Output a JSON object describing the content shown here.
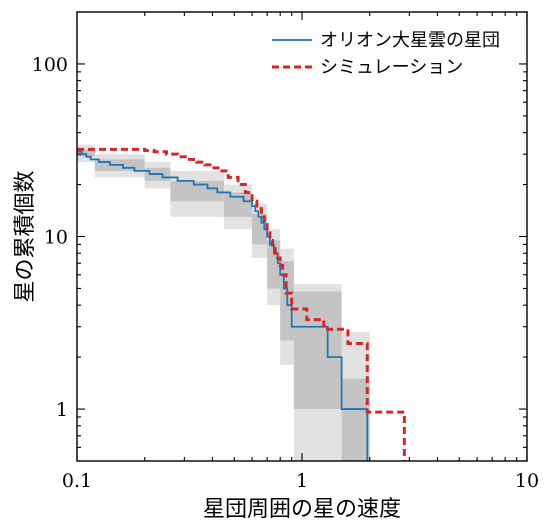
{
  "chart_data": {
    "type": "line",
    "title": "",
    "xlabel": "星団周囲の星の速度",
    "ylabel": "星の累積個数",
    "xscale": "log",
    "yscale": "log",
    "xlim": [
      0.1,
      10
    ],
    "ylim": [
      0.5,
      200
    ],
    "grid": false,
    "legend_position": "top-right",
    "x_ticks": [
      {
        "value": 0.1,
        "label": "0.1"
      },
      {
        "value": 1,
        "label": "1"
      },
      {
        "value": 10,
        "label": "10"
      }
    ],
    "y_ticks": [
      {
        "value": 1,
        "label": "1"
      },
      {
        "value": 10,
        "label": "10"
      },
      {
        "value": 100,
        "label": "100"
      }
    ],
    "bands": [
      {
        "level": "outer",
        "color": "#e2e2e2",
        "boxes": [
          {
            "x0": 0.1,
            "x1": 0.12,
            "y0": 27,
            "y1": 34
          },
          {
            "x0": 0.12,
            "x1": 0.2,
            "y0": 22,
            "y1": 30
          },
          {
            "x0": 0.2,
            "x1": 0.26,
            "y0": 19,
            "y1": 27
          },
          {
            "x0": 0.26,
            "x1": 0.45,
            "y0": 13,
            "y1": 24
          },
          {
            "x0": 0.45,
            "x1": 0.6,
            "y0": 11,
            "y1": 20
          },
          {
            "x0": 0.6,
            "x1": 0.7,
            "y0": 7.5,
            "y1": 15.5
          },
          {
            "x0": 0.7,
            "x1": 0.8,
            "y0": 4,
            "y1": 11
          },
          {
            "x0": 0.8,
            "x1": 0.92,
            "y0": 1.8,
            "y1": 8.5
          },
          {
            "x0": 0.92,
            "x1": 1.5,
            "y0": 0.5,
            "y1": 5.3
          },
          {
            "x0": 1.5,
            "x1": 2.0,
            "y0": 0.5,
            "y1": 2.8
          }
        ]
      },
      {
        "level": "inner",
        "color": "#c4c4c4",
        "boxes": [
          {
            "x0": 0.1,
            "x1": 0.12,
            "y0": 29,
            "y1": 32
          },
          {
            "x0": 0.12,
            "x1": 0.2,
            "y0": 24,
            "y1": 28
          },
          {
            "x0": 0.2,
            "x1": 0.26,
            "y0": 21,
            "y1": 25
          },
          {
            "x0": 0.26,
            "x1": 0.45,
            "y0": 16,
            "y1": 21
          },
          {
            "x0": 0.45,
            "x1": 0.6,
            "y0": 13,
            "y1": 18
          },
          {
            "x0": 0.6,
            "x1": 0.7,
            "y0": 9,
            "y1": 13.5
          },
          {
            "x0": 0.7,
            "x1": 0.8,
            "y0": 5,
            "y1": 9.5
          },
          {
            "x0": 0.8,
            "x1": 0.92,
            "y0": 2.5,
            "y1": 7.2
          },
          {
            "x0": 0.92,
            "x1": 1.5,
            "y0": 1.0,
            "y1": 4.8
          },
          {
            "x0": 1.5,
            "x1": 2.0,
            "y0": 0.5,
            "y1": 1.5
          }
        ]
      }
    ],
    "series": [
      {
        "name": "オリオン大星雲の星団",
        "color": "#1f77b4",
        "style": "solid",
        "x": [
          0.1,
          0.105,
          0.11,
          0.115,
          0.125,
          0.14,
          0.16,
          0.18,
          0.21,
          0.24,
          0.28,
          0.33,
          0.38,
          0.42,
          0.48,
          0.55,
          0.6,
          0.62,
          0.64,
          0.66,
          0.68,
          0.7,
          0.72,
          0.75,
          0.78,
          0.8,
          0.83,
          0.86,
          0.9,
          1.3,
          1.5,
          1.95
        ],
        "y": [
          31,
          30,
          29,
          28,
          27,
          26,
          25,
          24,
          23,
          22,
          21,
          20,
          19,
          18,
          17,
          16,
          15,
          14,
          13,
          12,
          11,
          10,
          9,
          8,
          7,
          6,
          5,
          4,
          3,
          2,
          1,
          0.5
        ]
      },
      {
        "name": "シミュレーション",
        "color": "#d62728",
        "style": "dashed",
        "x": [
          0.1,
          0.2,
          0.22,
          0.25,
          0.28,
          0.31,
          0.34,
          0.37,
          0.4,
          0.43,
          0.47,
          0.52,
          0.56,
          0.6,
          0.63,
          0.66,
          0.68,
          0.7,
          0.72,
          0.74,
          0.76,
          0.78,
          0.8,
          0.82,
          0.85,
          0.9,
          1.05,
          1.25,
          1.6,
          1.95,
          2.85
        ],
        "y": [
          32,
          31.5,
          31,
          30,
          29,
          28,
          27,
          26,
          25,
          24,
          22,
          20,
          18,
          16,
          14.5,
          13,
          12,
          10.5,
          9.5,
          8.5,
          8,
          7.5,
          6.8,
          6,
          4.7,
          3.8,
          3.3,
          2.9,
          2.4,
          0.96,
          0.5
        ]
      }
    ]
  }
}
